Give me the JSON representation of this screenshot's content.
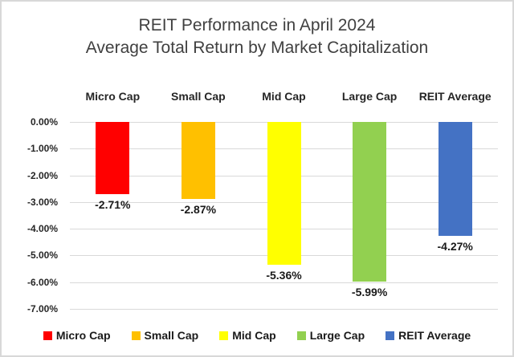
{
  "page": {
    "background": "#FFFFFF",
    "border_color": "#D8D8D8"
  },
  "chart_data": {
    "type": "bar",
    "title": "REIT Performance in April 2024",
    "subtitle": "Average Total Return by Market Capitalization",
    "categories": [
      "Micro Cap",
      "Small Cap",
      "Mid Cap",
      "Large Cap",
      "REIT Average"
    ],
    "values": [
      -2.71,
      -2.87,
      -5.36,
      -5.99,
      -4.27
    ],
    "value_labels": [
      "-2.71%",
      "-2.87%",
      "-5.36%",
      "-5.99%",
      "-4.27%"
    ],
    "bar_colors": [
      "#FF0000",
      "#FFC000",
      "#FFFF00",
      "#92D050",
      "#4472C4"
    ],
    "xlabel": "",
    "ylabel": "",
    "ylim": [
      -7,
      0
    ],
    "y_ticks": [
      0,
      -1,
      -2,
      -3,
      -4,
      -5,
      -6,
      -7
    ],
    "y_tick_labels": [
      "0.00%",
      "-1.00%",
      "-2.00%",
      "-3.00%",
      "-4.00%",
      "-5.00%",
      "-6.00%",
      "-7.00%"
    ],
    "grid": true,
    "gridline_color": "#D9D9D9",
    "category_labels_position": "top",
    "value_labels_position": "outside-end",
    "legend_position": "bottom",
    "legend": [
      {
        "label": "Micro Cap",
        "color": "#FF0000"
      },
      {
        "label": "Small Cap",
        "color": "#FFC000"
      },
      {
        "label": "Mid Cap",
        "color": "#FFFF00"
      },
      {
        "label": "Large Cap",
        "color": "#92D050"
      },
      {
        "label": "REIT Average",
        "color": "#4472C4"
      }
    ],
    "title_color": "#404040",
    "label_color": "#262626"
  }
}
